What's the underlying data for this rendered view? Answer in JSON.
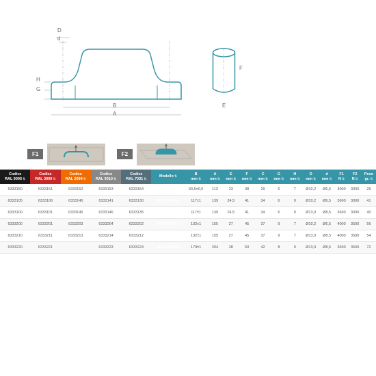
{
  "diagram": {
    "dim_labels": [
      "D",
      "d",
      "H",
      "G",
      "B",
      "A",
      "F",
      "E"
    ],
    "force_labels": [
      "F1",
      "F2"
    ]
  },
  "headers": [
    {
      "label": "Codice",
      "sub": "RAL 9005",
      "bg": "#1a1a1a"
    },
    {
      "label": "Codice",
      "sub": "RAL 3000",
      "bg": "#c62828"
    },
    {
      "label": "Codice",
      "sub": "RAL 2004",
      "bg": "#ef6c00"
    },
    {
      "label": "Codice",
      "sub": "RAL 9010",
      "bg": "#888888"
    },
    {
      "label": "Codice",
      "sub": "RAL 7031",
      "bg": "#546e7a"
    },
    {
      "label": "Modello",
      "sub": "",
      "bg": "#3696a7",
      "model": true
    },
    {
      "label": "B",
      "sub": "mm",
      "bg": "#3696a7"
    },
    {
      "label": "A",
      "sub": "mm",
      "bg": "#3696a7"
    },
    {
      "label": "E",
      "sub": "mm",
      "bg": "#3696a7"
    },
    {
      "label": "F",
      "sub": "mm",
      "bg": "#3696a7"
    },
    {
      "label": "C",
      "sub": "mm",
      "bg": "#3696a7"
    },
    {
      "label": "G",
      "sub": "mm",
      "bg": "#3696a7"
    },
    {
      "label": "H",
      "sub": "mm",
      "bg": "#3696a7"
    },
    {
      "label": "D",
      "sub": "mm",
      "bg": "#3696a7"
    },
    {
      "label": "d",
      "sub": "mm",
      "bg": "#3696a7"
    },
    {
      "label": "F1",
      "sub": "N",
      "bg": "#3696a7"
    },
    {
      "label": "F2",
      "sub": "N",
      "bg": "#3696a7"
    },
    {
      "label": "Peso",
      "sub": "gr.",
      "bg": "#3696a7"
    }
  ],
  "rows": [
    [
      "6333150",
      "6333151",
      "6333152",
      "6333153",
      "6333154",
      "MF/93,5 Ø6,5",
      "93,5±0,5",
      "113",
      "23",
      "38",
      "29",
      "6",
      "7",
      "Ø10,2",
      "Ø6,5",
      "4000",
      "3000",
      "26"
    ],
    [
      "6333105",
      "6333106",
      "6333140",
      "6333141",
      "6333130",
      "MF/117 Ø6,5",
      "117±1",
      "139",
      "24,5",
      "41",
      "34",
      "6",
      "9",
      "Ø10,2",
      "Ø6,5",
      "3600",
      "3000",
      "41"
    ],
    [
      "6333100",
      "6333101",
      "6333145",
      "6333146",
      "6333135",
      "MF/117 Ø8,5",
      "117±1",
      "139",
      "24,5",
      "41",
      "34",
      "6",
      "9",
      "Ø13,0",
      "Ø8,5",
      "3600",
      "3000",
      "40"
    ],
    [
      "6333200",
      "6333201",
      "6333203",
      "6333204",
      "6333202",
      "MF/132 Ø6,5",
      "132±1",
      "155",
      "27",
      "45",
      "37",
      "9",
      "7",
      "Ø10,2",
      "Ø6,5",
      "4000",
      "3500",
      "56"
    ],
    [
      "6333210",
      "6333211",
      "6333213",
      "6333214",
      "6333212",
      "MF/132 Ø8,5",
      "132±1",
      "155",
      "27",
      "45",
      "37",
      "9",
      "7",
      "Ø13,0",
      "Ø8,5",
      "4000",
      "3500",
      "54"
    ],
    [
      "6333220",
      "6333221",
      "",
      "6333223",
      "6333224",
      "MF/179 Ø8,5",
      "179±1",
      "204",
      "28",
      "50",
      "42",
      "8",
      "9",
      "Ø13,0",
      "Ø8,5",
      "3600",
      "3500",
      "72"
    ]
  ],
  "colors": {
    "diagram_stroke": "#3696a7",
    "dim_line": "#999999",
    "force_box": "#cfc8bf",
    "handle_fill": "#3696a7"
  }
}
